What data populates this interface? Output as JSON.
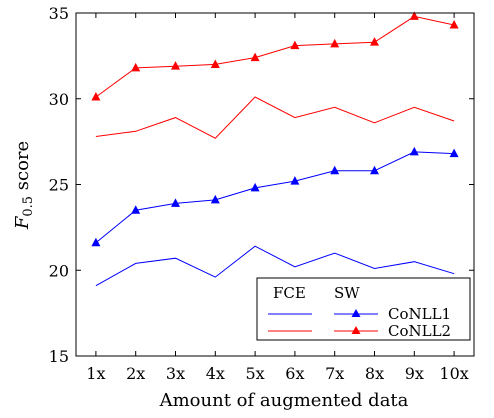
{
  "chart_data": {
    "type": "line",
    "title": "",
    "xlabel": "Amount of augmented data",
    "ylabel_main": "F",
    "ylabel_sub": "0.5",
    "ylabel_rest": " score",
    "categories": [
      "1x",
      "2x",
      "3x",
      "4x",
      "5x",
      "6x",
      "7x",
      "8x",
      "9x",
      "10x"
    ],
    "ylim": [
      15,
      35
    ],
    "yticks": [
      "15",
      "20",
      "25",
      "30",
      "35"
    ],
    "grid": false,
    "legend_placement": "bottom-right",
    "legend": {
      "col_fce": "FCE",
      "col_sw": "SW",
      "row_1": "CoNLL1",
      "row_2": "CoNLL2"
    },
    "series": [
      {
        "key": "fce-conll1",
        "color": "#0000ff",
        "marker": "none",
        "values": [
          19.1,
          20.4,
          20.7,
          19.6,
          21.4,
          20.2,
          21.0,
          20.1,
          20.5,
          19.8
        ]
      },
      {
        "key": "sw-conll1",
        "color": "#0000ff",
        "marker": "triangle",
        "values": [
          21.6,
          23.5,
          23.9,
          24.1,
          24.8,
          25.2,
          25.8,
          25.8,
          26.9,
          26.8
        ]
      },
      {
        "key": "fce-conll2",
        "color": "#ff0000",
        "marker": "none",
        "values": [
          27.8,
          28.1,
          28.9,
          27.7,
          30.1,
          28.9,
          29.5,
          28.6,
          29.5,
          28.7
        ]
      },
      {
        "key": "sw-conll2",
        "color": "#ff0000",
        "marker": "triangle",
        "values": [
          30.1,
          31.8,
          31.9,
          32.0,
          32.4,
          33.1,
          33.2,
          33.3,
          34.8,
          34.3
        ]
      }
    ]
  }
}
